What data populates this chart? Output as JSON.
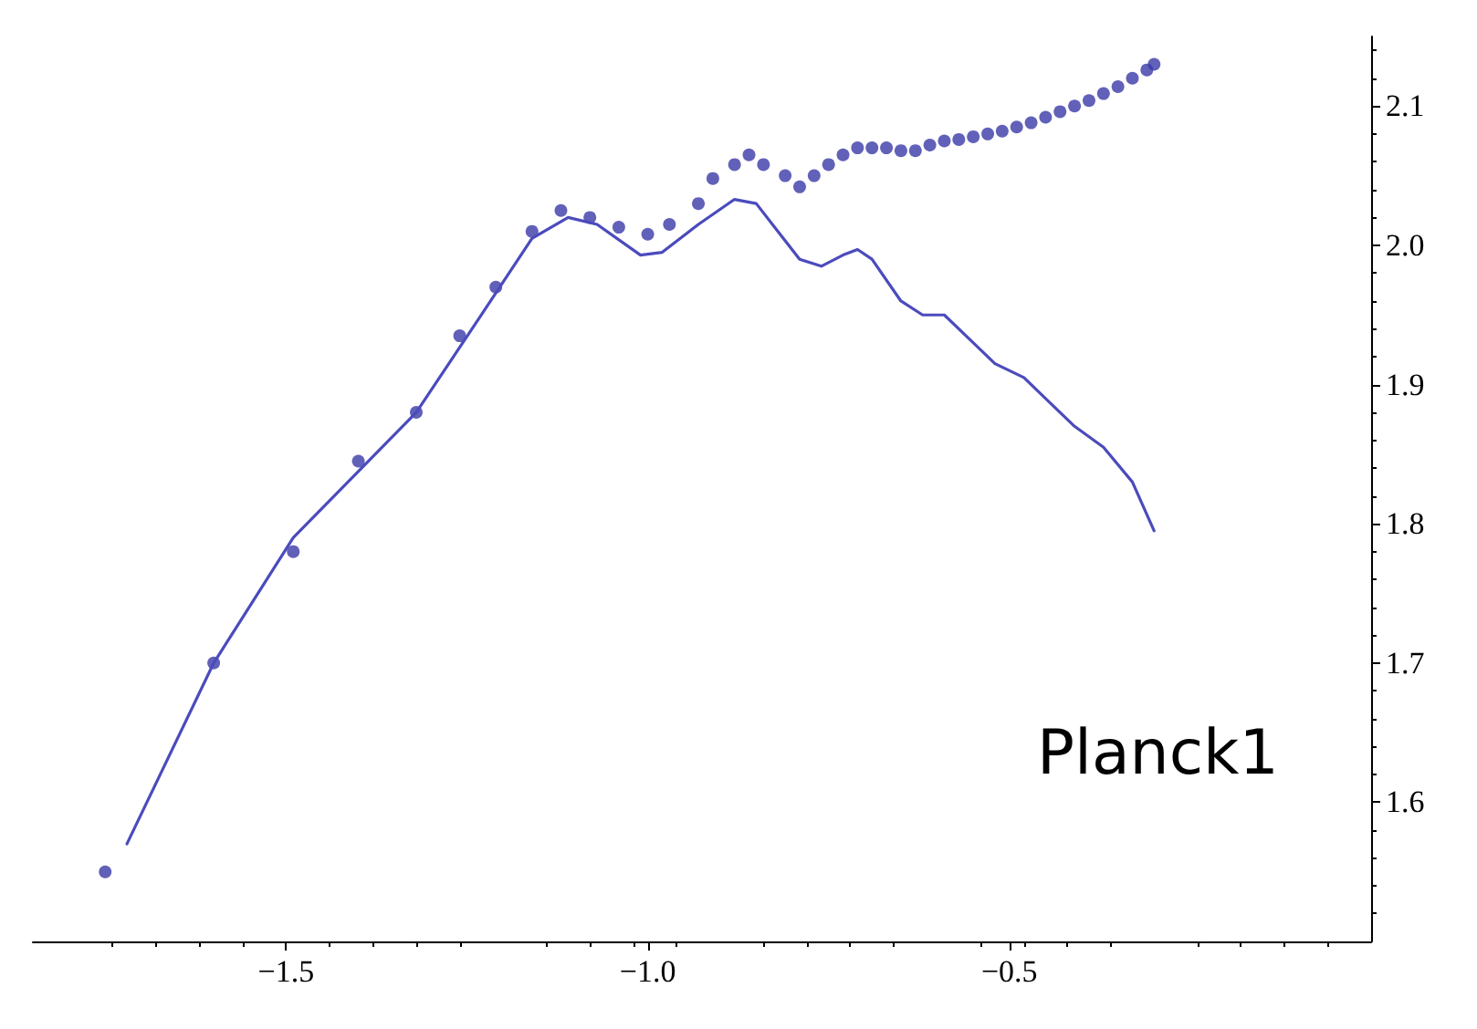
{
  "chart_data": {
    "type": "line",
    "annotations": [
      "Planck1"
    ],
    "xlim": [
      -1.85,
      0
    ],
    "xticks": [
      {
        "value": -1.5,
        "label": "−1.5"
      },
      {
        "value": -1,
        "label": "−1.0"
      },
      {
        "value": -0.5,
        "label": "−0.5"
      }
    ],
    "ylim": [
      1.5,
      2.15
    ],
    "yticks": [
      1.6,
      1.7,
      1.8,
      1.9,
      {
        "value": 2,
        "label": "2.0"
      },
      2.1
    ],
    "grid": false,
    "series": [
      {
        "type": "scatter",
        "color": "#3a3aa8",
        "marker": "circle",
        "x": [
          -1.75,
          -1.6,
          -1.49,
          -1.4,
          -1.32,
          -1.26,
          -1.21,
          -1.16,
          -1.12,
          -1.08,
          -1.04,
          -1.0,
          -0.97,
          -0.93,
          -0.91,
          -0.88,
          -0.86,
          -0.84,
          -0.81,
          -0.79,
          -0.77,
          -0.75,
          -0.73,
          -0.71,
          -0.69,
          -0.67,
          -0.65,
          -0.63,
          -0.61,
          -0.59,
          -0.57,
          -0.55,
          -0.53,
          -0.51,
          -0.49,
          -0.47,
          -0.45,
          -0.43,
          -0.41,
          -0.39,
          -0.37,
          -0.35,
          -0.33,
          -0.31,
          -0.3
        ],
        "values": [
          1.55,
          1.7,
          1.78,
          1.845,
          1.88,
          1.935,
          1.97,
          2.01,
          2.025,
          2.02,
          2.013,
          2.008,
          2.015,
          2.03,
          2.048,
          2.058,
          2.065,
          2.058,
          2.05,
          2.042,
          2.05,
          2.058,
          2.065,
          2.07,
          2.07,
          2.07,
          2.068,
          2.068,
          2.072,
          2.075,
          2.076,
          2.078,
          2.08,
          2.082,
          2.085,
          2.088,
          2.092,
          2.096,
          2.1,
          2.104,
          2.109,
          2.114,
          2.12,
          2.126,
          2.13
        ]
      },
      {
        "color": "#4b4bbd",
        "marker": "none",
        "line_style": "solid",
        "x": [
          -1.72,
          -1.6,
          -1.49,
          -1.32,
          -1.23,
          -1.16,
          -1.11,
          -1.07,
          -1.01,
          -0.98,
          -0.93,
          -0.88,
          -0.85,
          -0.82,
          -0.79,
          -0.76,
          -0.73,
          -0.71,
          -0.69,
          -0.65,
          -0.62,
          -0.59,
          -0.56,
          -0.52,
          -0.48,
          -0.45,
          -0.41,
          -0.37,
          -0.33,
          -0.3
        ],
        "values": [
          1.57,
          1.7,
          1.79,
          1.88,
          1.95,
          2.005,
          2.02,
          2.015,
          1.993,
          1.995,
          2.015,
          2.033,
          2.03,
          2.01,
          1.99,
          1.985,
          1.993,
          1.997,
          1.99,
          1.96,
          1.95,
          1.95,
          1.935,
          1.915,
          1.905,
          1.89,
          1.87,
          1.855,
          1.83,
          1.795
        ]
      }
    ]
  }
}
